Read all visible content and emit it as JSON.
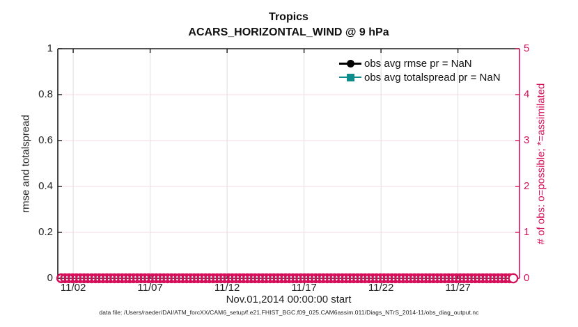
{
  "figure": {
    "title_line1": "Tropics",
    "title_line2": "ACARS_HORIZONTAL_WIND @ 9 hPa",
    "footer": "data file: /Users/raeder/DAI/ATM_forcXX/CAM6_setup/f.e21.FHIST_BGC.f09_025.CAM6assim.011/Diags_NTrS_2014-11/obs_diag_output.nc"
  },
  "colors": {
    "obs_count_pink": "#D60F5A",
    "totalspread_teal": "#0F8C8C",
    "rmse_black": "#000000",
    "grid_gray": "#DCDCDC",
    "grid_pink": "#F7D7E4",
    "axis_black": "#1a1a1a"
  },
  "chart_data": {
    "type": "line",
    "title": "Tropics",
    "subtitle": "ACARS_HORIZONTAL_WIND @ 9 hPa",
    "grid": true,
    "legend": {
      "position": "top-right-inside",
      "frame": false
    },
    "x_axis": {
      "label": "Nov.01,2014 00:00:00 start",
      "start_time": "Nov.01,2014 00:00:00",
      "range_days": [
        0,
        30
      ],
      "tick_days": [
        1,
        6,
        11,
        16,
        21,
        26
      ],
      "tick_labels": [
        "11/02",
        "11/07",
        "11/12",
        "11/17",
        "11/22",
        "11/27"
      ]
    },
    "y_axis_left": {
      "label": "rmse and totalspread",
      "range": [
        0,
        1
      ],
      "tick_values": [
        0,
        0.2,
        0.4,
        0.6,
        0.8,
        1
      ],
      "tick_labels": [
        "0",
        "0.2",
        "0.4",
        "0.6",
        "0.8",
        "1"
      ]
    },
    "y_axis_right": {
      "label": "# of obs: o=possible; *=assimilated",
      "range": [
        0,
        5
      ],
      "tick_values": [
        0,
        1,
        2,
        3,
        4,
        5
      ],
      "tick_labels": [
        "0",
        "1",
        "2",
        "3",
        "4",
        "5"
      ],
      "color": "#D60F5A"
    },
    "series": [
      {
        "name": "obs avg rmse",
        "legend_label": "obs avg rmse pr = NaN",
        "color": "#000000",
        "marker": "filled-circle",
        "axis": "left",
        "values": "NaN at all times (no curve drawn)"
      },
      {
        "name": "obs avg totalspread",
        "legend_label": "obs avg totalspread pr = NaN",
        "color": "#0F8C8C",
        "marker": "filled-square",
        "axis": "left",
        "values": "NaN at all times (no curve drawn)"
      },
      {
        "name": "possible observation count",
        "legend_label": "",
        "color": "#D60F5A",
        "marker": "open-circle",
        "axis": "right",
        "n_points": 120,
        "constant_value": 0
      }
    ]
  }
}
